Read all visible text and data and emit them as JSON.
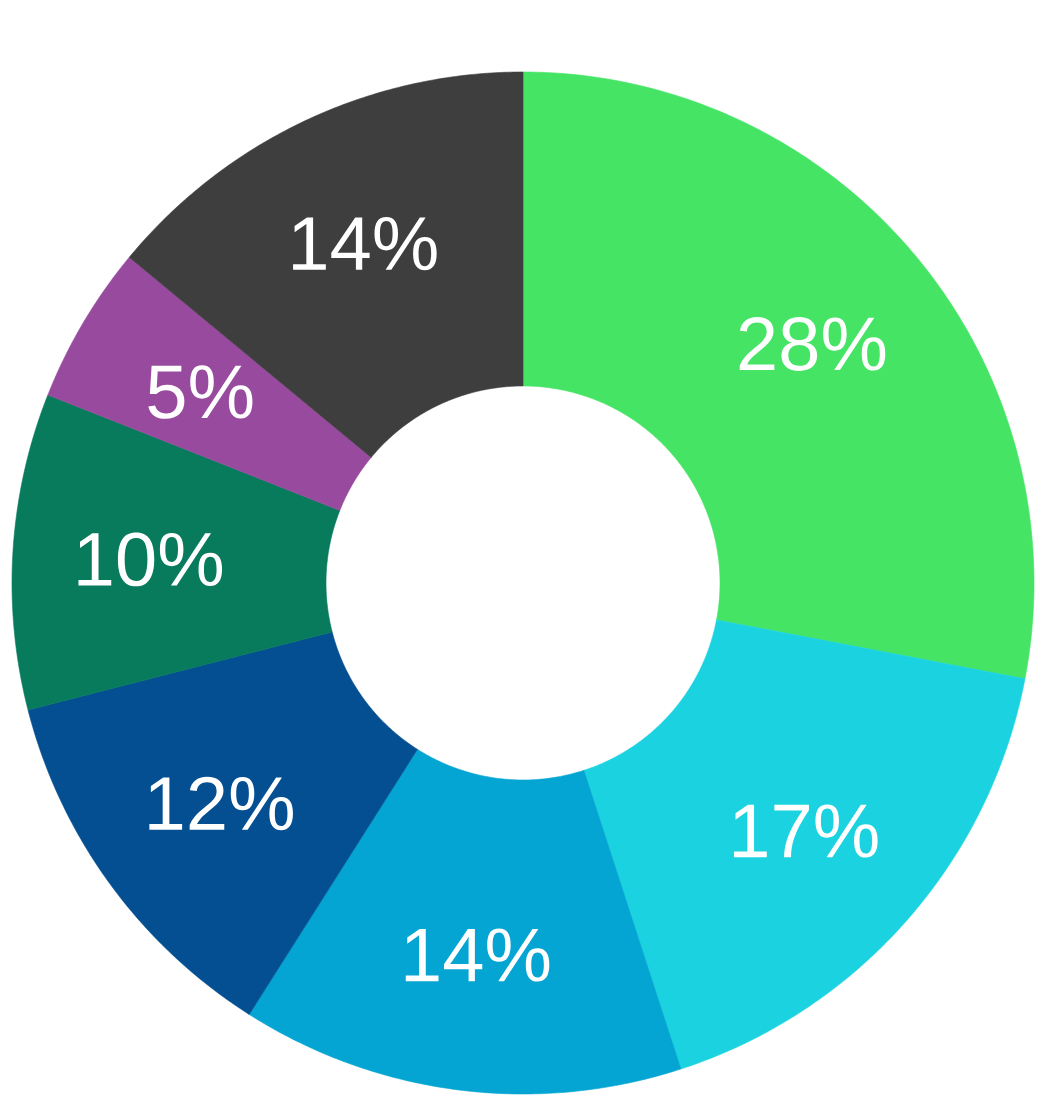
{
  "chart_data": {
    "type": "donut",
    "categories": [
      null,
      null,
      null,
      null,
      null,
      null,
      null
    ],
    "values": [
      28,
      17,
      14,
      12,
      10,
      5,
      14
    ],
    "colors": [
      "#45e465",
      "#1bd3e0",
      "#04a5d3",
      "#034f91",
      "#077b5c",
      "#984b9e",
      "#3e3e3e"
    ],
    "value_labels": [
      "28%",
      "17%",
      "14%",
      "12%",
      "10%",
      "5%",
      "14%"
    ]
  }
}
